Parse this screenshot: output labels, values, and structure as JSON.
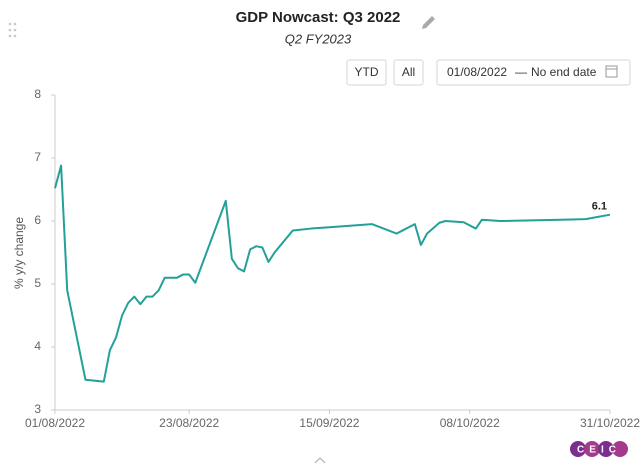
{
  "chart_data": {
    "type": "line",
    "title": "GDP Nowcast: Q3 2022",
    "subtitle": "Q2 FY2023",
    "y_label": "% y/y change",
    "x": [
      "01/08/2022",
      "02/08/2022",
      "03/08/2022",
      "06/08/2022",
      "09/08/2022",
      "10/08/2022",
      "11/08/2022",
      "12/08/2022",
      "13/08/2022",
      "14/08/2022",
      "15/08/2022",
      "16/08/2022",
      "17/08/2022",
      "18/08/2022",
      "19/08/2022",
      "21/08/2022",
      "22/08/2022",
      "23/08/2022",
      "24/08/2022",
      "29/08/2022",
      "30/08/2022",
      "31/08/2022",
      "01/09/2022",
      "02/09/2022",
      "03/09/2022",
      "04/09/2022",
      "05/09/2022",
      "06/09/2022",
      "09/09/2022",
      "12/09/2022",
      "15/09/2022",
      "22/09/2022",
      "26/09/2022",
      "27/09/2022",
      "29/09/2022",
      "30/09/2022",
      "01/10/2022",
      "03/10/2022",
      "04/10/2022",
      "07/10/2022",
      "09/10/2022",
      "10/10/2022",
      "13/10/2022",
      "23/10/2022",
      "27/10/2022",
      "31/10/2022"
    ],
    "series": [
      {
        "name": "GDP Nowcast",
        "color": "#23a199",
        "values": [
          6.52,
          6.88,
          4.9,
          3.48,
          3.45,
          3.95,
          4.15,
          4.5,
          4.7,
          4.8,
          4.68,
          4.8,
          4.8,
          4.9,
          5.1,
          5.1,
          5.15,
          5.15,
          5.02,
          6.32,
          5.4,
          5.25,
          5.2,
          5.55,
          5.6,
          5.58,
          5.35,
          5.5,
          5.85,
          5.88,
          5.9,
          5.95,
          5.8,
          5.85,
          5.95,
          5.62,
          5.8,
          5.97,
          6.0,
          5.98,
          5.88,
          6.02,
          6.0,
          6.02,
          6.03,
          6.1
        ]
      }
    ],
    "xlim": [
      "01/08/2022",
      "31/10/2022"
    ],
    "xticks": [
      "01/08/2022",
      "23/08/2022",
      "15/09/2022",
      "08/10/2022",
      "31/10/2022"
    ],
    "ylim": [
      3,
      8
    ],
    "yticks": [
      3,
      4,
      5,
      6,
      7,
      8
    ],
    "grid": false
  },
  "controls": {
    "ytd": "YTD",
    "all": "All",
    "start_date": "01/08/2022",
    "separator": "—",
    "end_date": "No end date"
  },
  "logo": "CEIC"
}
